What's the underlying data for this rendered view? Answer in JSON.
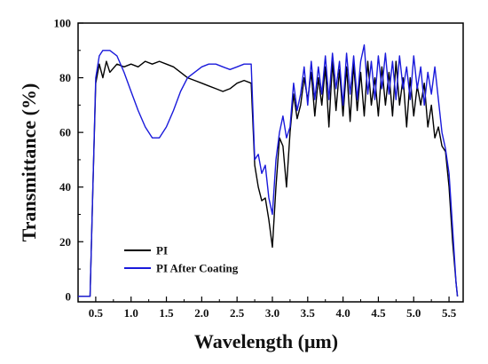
{
  "chart_data": {
    "type": "line",
    "title": "",
    "xlabel": "Wavelength (μm)",
    "ylabel": "Transmittance (%)",
    "xlim": [
      0.25,
      5.7
    ],
    "ylim": [
      -2,
      100
    ],
    "x_ticks": [
      0.5,
      1.0,
      1.5,
      2.0,
      2.5,
      3.0,
      3.5,
      4.0,
      4.5,
      5.0,
      5.5
    ],
    "x_tick_labels": [
      "0.5",
      "1.0",
      "1.5",
      "2.0",
      "2.5",
      "3.0",
      "3.5",
      "4.0",
      "4.5",
      "5.0",
      "5.5"
    ],
    "y_ticks": [
      0,
      20,
      40,
      60,
      80,
      100
    ],
    "y_tick_labels": [
      "0",
      "20",
      "40",
      "60",
      "80",
      "100"
    ],
    "grid": false,
    "legend_position": "bottom-left",
    "series": [
      {
        "name": "PI",
        "color": "#000000",
        "x": [
          0.25,
          0.42,
          0.46,
          0.5,
          0.55,
          0.6,
          0.65,
          0.7,
          0.8,
          0.9,
          1.0,
          1.1,
          1.2,
          1.3,
          1.4,
          1.5,
          1.6,
          1.7,
          1.8,
          1.9,
          2.0,
          2.1,
          2.2,
          2.3,
          2.4,
          2.5,
          2.6,
          2.7,
          2.75,
          2.8,
          2.85,
          2.9,
          2.95,
          3.0,
          3.05,
          3.1,
          3.15,
          3.2,
          3.25,
          3.3,
          3.35,
          3.4,
          3.45,
          3.5,
          3.55,
          3.6,
          3.65,
          3.7,
          3.75,
          3.8,
          3.85,
          3.9,
          3.95,
          4.0,
          4.05,
          4.1,
          4.15,
          4.2,
          4.25,
          4.3,
          4.35,
          4.4,
          4.45,
          4.5,
          4.55,
          4.6,
          4.65,
          4.7,
          4.75,
          4.8,
          4.85,
          4.9,
          4.95,
          5.0,
          5.05,
          5.1,
          5.15,
          5.2,
          5.25,
          5.3,
          5.35,
          5.4,
          5.45,
          5.5,
          5.55,
          5.6,
          5.62
        ],
        "y": [
          0,
          0,
          40,
          78,
          85,
          80,
          86,
          82,
          85,
          84,
          85,
          84,
          86,
          85,
          86,
          85,
          84,
          82,
          80,
          79,
          78,
          77,
          76,
          75,
          76,
          78,
          79,
          78,
          48,
          40,
          35,
          36,
          28,
          18,
          40,
          58,
          55,
          40,
          60,
          74,
          65,
          70,
          80,
          72,
          82,
          66,
          80,
          70,
          84,
          62,
          86,
          68,
          83,
          66,
          84,
          64,
          85,
          68,
          82,
          66,
          86,
          70,
          80,
          66,
          84,
          70,
          82,
          66,
          86,
          70,
          80,
          62,
          80,
          66,
          77,
          70,
          78,
          62,
          70,
          58,
          62,
          55,
          53,
          40,
          20,
          5,
          0
        ]
      },
      {
        "name": "PI After Coating",
        "color": "#1a1adb",
        "x": [
          0.25,
          0.42,
          0.46,
          0.5,
          0.55,
          0.6,
          0.7,
          0.8,
          0.9,
          1.0,
          1.1,
          1.2,
          1.3,
          1.4,
          1.5,
          1.6,
          1.7,
          1.8,
          1.9,
          2.0,
          2.1,
          2.2,
          2.3,
          2.4,
          2.5,
          2.6,
          2.7,
          2.75,
          2.8,
          2.85,
          2.9,
          2.95,
          3.0,
          3.05,
          3.1,
          3.15,
          3.2,
          3.25,
          3.3,
          3.35,
          3.4,
          3.45,
          3.5,
          3.55,
          3.6,
          3.65,
          3.7,
          3.75,
          3.8,
          3.85,
          3.9,
          3.95,
          4.0,
          4.05,
          4.1,
          4.15,
          4.2,
          4.25,
          4.3,
          4.35,
          4.4,
          4.45,
          4.5,
          4.55,
          4.6,
          4.65,
          4.7,
          4.75,
          4.8,
          4.85,
          4.9,
          4.95,
          5.0,
          5.05,
          5.1,
          5.15,
          5.2,
          5.25,
          5.3,
          5.35,
          5.4,
          5.45,
          5.5,
          5.55,
          5.6,
          5.62
        ],
        "y": [
          0,
          0,
          40,
          80,
          88,
          90,
          90,
          88,
          82,
          75,
          68,
          62,
          58,
          58,
          62,
          68,
          75,
          80,
          82,
          84,
          85,
          85,
          84,
          83,
          84,
          85,
          85,
          50,
          52,
          45,
          48,
          36,
          30,
          50,
          60,
          66,
          58,
          62,
          78,
          68,
          74,
          84,
          70,
          86,
          72,
          84,
          74,
          88,
          72,
          89,
          76,
          86,
          70,
          89,
          74,
          88,
          72,
          86,
          92,
          74,
          86,
          72,
          88,
          76,
          89,
          74,
          86,
          72,
          88,
          76,
          84,
          72,
          88,
          76,
          84,
          70,
          82,
          74,
          84,
          72,
          60,
          54,
          45,
          25,
          5,
          0
        ]
      }
    ]
  }
}
